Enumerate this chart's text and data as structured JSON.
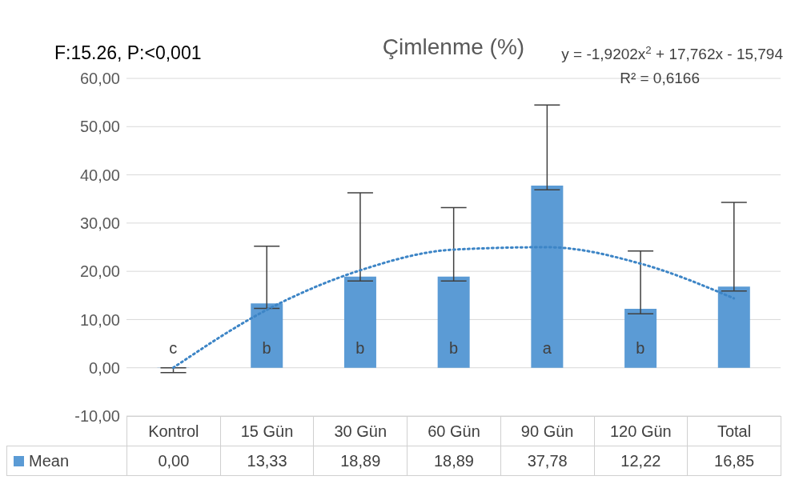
{
  "chart_data": {
    "type": "bar",
    "title": "Çimlenme (%)",
    "categories": [
      "Kontrol",
      "15 Gün",
      "30 Gün",
      "60 Gün",
      "90 Gün",
      "120 Gün",
      "Total"
    ],
    "series": [
      {
        "name": "Mean",
        "color": "#5b9bd5",
        "values": [
          0,
          13.33,
          18.89,
          18.89,
          37.78,
          12.22,
          16.85
        ],
        "value_labels": [
          "0,00",
          "13,33",
          "18,89",
          "18,89",
          "37,78",
          "12,22",
          "16,85"
        ],
        "errors": [
          [
            -1,
            0
          ],
          [
            12.3,
            25.2
          ],
          [
            18.0,
            36.3
          ],
          [
            18.0,
            33.2
          ],
          [
            36.9,
            54.5
          ],
          [
            11.2,
            24.2
          ],
          [
            15.9,
            34.3
          ]
        ]
      },
      {
        "type": "line",
        "color": "#3d85c6",
        "line_style": "dotted",
        "values": [
          0.0,
          12.0,
          20.2,
          24.5,
          25.0,
          21.6,
          14.4
        ]
      }
    ],
    "ylim": [
      -10,
      60
    ],
    "yticks": [
      {
        "value": -10,
        "label": "-10,00"
      },
      {
        "value": 0,
        "label": "0,00"
      },
      {
        "value": 10,
        "label": "10,00"
      },
      {
        "value": 20,
        "label": "20,00"
      },
      {
        "value": 30,
        "label": "30,00"
      },
      {
        "value": 40,
        "label": "40,00"
      },
      {
        "value": 50,
        "label": "50,00"
      },
      {
        "value": 60,
        "label": "60,00"
      }
    ],
    "grid": "y",
    "legend": "bottom",
    "marker": "none",
    "annotations": [
      "F:15.26, P:<0,001",
      "y = -1,9202x$^{2}$ + 17,762x - 15,794",
      "R² = 0,6166",
      "c",
      "b",
      "b",
      "b",
      "a",
      "b"
    ]
  }
}
